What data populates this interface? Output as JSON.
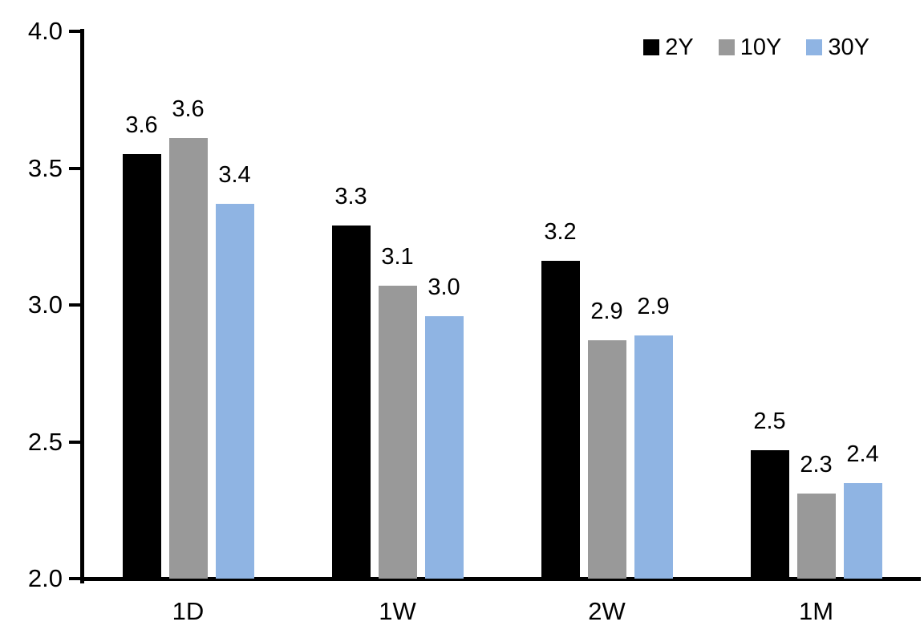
{
  "chart_data": {
    "type": "bar",
    "title": "",
    "xlabel": "",
    "ylabel": "",
    "categories": [
      "1D",
      "1W",
      "2W",
      "1M"
    ],
    "series": [
      {
        "name": "2Y",
        "color": "#000000",
        "values": [
          3.55,
          3.29,
          3.16,
          2.47
        ],
        "labels": [
          "3.6",
          "3.3",
          "3.2",
          "2.5"
        ]
      },
      {
        "name": "10Y",
        "color": "#999999",
        "values": [
          3.61,
          3.07,
          2.87,
          2.31
        ],
        "labels": [
          "3.6",
          "3.1",
          "2.9",
          "2.3"
        ]
      },
      {
        "name": "30Y",
        "color": "#8FB4E3",
        "values": [
          3.37,
          2.96,
          2.89,
          2.35
        ],
        "labels": [
          "3.4",
          "3.0",
          "2.9",
          "2.4"
        ]
      }
    ],
    "ylim": [
      2.0,
      4.0
    ],
    "ytick_values": [
      4.0,
      3.5,
      3.0,
      2.5,
      2.0
    ],
    "ytick_labels": [
      "4.0",
      "3.5",
      "3.0",
      "2.5",
      "2.0"
    ],
    "grid": false,
    "legend_position": "top-right",
    "axis_color": "#000000",
    "text_color": "#000000",
    "background_color": "#ffffff"
  }
}
